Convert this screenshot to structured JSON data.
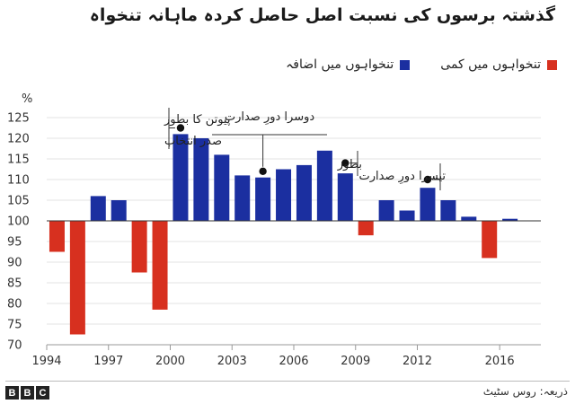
{
  "header": {
    "title": "گذشتہ برسوں کی نسبت اصل حاصل کردہ ماہانہ تنخواہ"
  },
  "legend": {
    "increase_label": "تنخواہوں میں اضافہ",
    "decrease_label": "تنخواہوں میں کمی"
  },
  "colors": {
    "increase": "#1b2fa0",
    "decrease": "#d7301f"
  },
  "chart_data": {
    "type": "bar",
    "title": "گذشتہ برسوں کی نسبت اصل حاصل کردہ ماہانہ تنخواہ",
    "ylabel": "%",
    "ylim": [
      70,
      125
    ],
    "yticks": [
      70,
      75,
      80,
      85,
      90,
      95,
      100,
      105,
      110,
      115,
      120,
      125
    ],
    "baseline": 100,
    "xlim": [
      1994,
      2018
    ],
    "xticks": [
      "1994",
      "1997",
      "2000",
      "2003",
      "2006",
      "2009",
      "2012",
      "2016"
    ],
    "grid": true,
    "legend_position": "top-right",
    "years": [
      1994,
      1995,
      1996,
      1997,
      1998,
      1999,
      2000,
      2001,
      2002,
      2003,
      2004,
      2005,
      2006,
      2007,
      2008,
      2009,
      2010,
      2011,
      2012,
      2013,
      2014,
      2015,
      2016
    ],
    "values": [
      92.5,
      72.5,
      106,
      105,
      87.5,
      78.5,
      121,
      120,
      116,
      111,
      110.5,
      112.5,
      113.5,
      117,
      111.5,
      96.5,
      105,
      102.5,
      108,
      105,
      101,
      91,
      100.5
    ],
    "annotations": [
      {
        "year": 2000,
        "value": 122.5,
        "lines": [
          "پیوتن کا بطور",
          "صدر انتخاب"
        ]
      },
      {
        "year": 2004,
        "value": 112,
        "lines": [
          "دوسرا دورِ صدارت"
        ]
      },
      {
        "year": 2008,
        "value": 114,
        "lines": [
          "بطور"
        ]
      },
      {
        "year": 2012,
        "value": 110,
        "lines": [
          "تیسرا دورِ صدارت"
        ]
      }
    ]
  },
  "footer": {
    "logo_letters": [
      "B",
      "B",
      "C"
    ],
    "source": "ذریعہ: روس سٹیٹ"
  }
}
